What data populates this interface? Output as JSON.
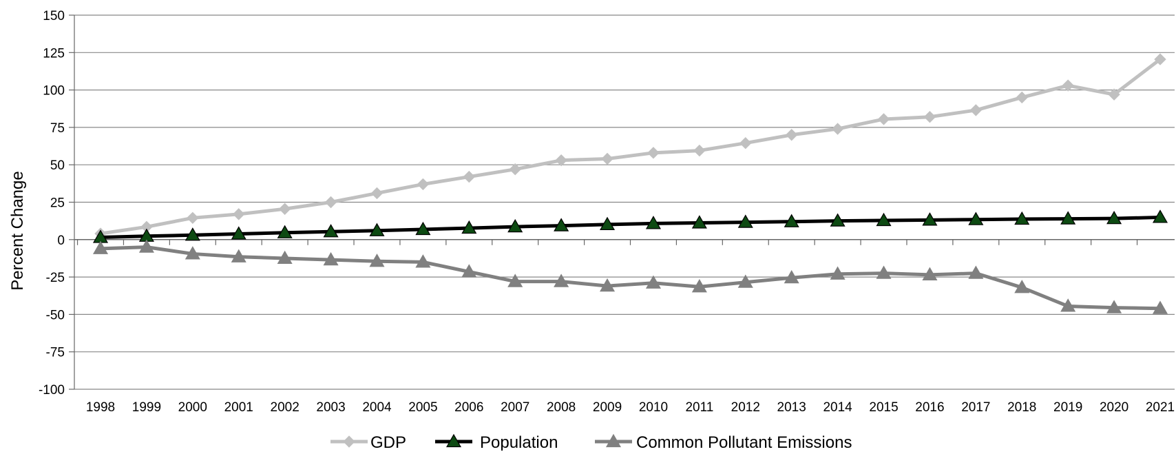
{
  "chart_data": {
    "type": "line",
    "title": "",
    "xlabel": "",
    "ylabel": "Percent Change",
    "ylim": [
      -100,
      150
    ],
    "yticks": [
      -100,
      -75,
      -50,
      -25,
      0,
      25,
      50,
      75,
      100,
      125,
      150
    ],
    "grid": true,
    "legend_position": "bottom-center",
    "categories": [
      "1998",
      "1999",
      "2000",
      "2001",
      "2002",
      "2003",
      "2004",
      "2005",
      "2006",
      "2007",
      "2008",
      "2009",
      "2010",
      "2011",
      "2012",
      "2013",
      "2014",
      "2015",
      "2016",
      "2017",
      "2018",
      "2019",
      "2020",
      "2021"
    ],
    "series": [
      {
        "name": "GDP",
        "marker": "diamond",
        "color": "#c0c0c0",
        "values": [
          4,
          8.5,
          14.5,
          17,
          20.5,
          25,
          31,
          37,
          42,
          47,
          53,
          54,
          58,
          59.5,
          64.5,
          70,
          74,
          80.5,
          82,
          86.5,
          95,
          103,
          97,
          120.5
        ]
      },
      {
        "name": "Population",
        "marker": "triangle",
        "color": "#000000",
        "marker_fill": "#0d4a12",
        "values": [
          1.5,
          2.3,
          3,
          3.8,
          4.6,
          5.3,
          6,
          6.8,
          7.7,
          8.6,
          9.3,
          10.1,
          10.8,
          11.2,
          11.6,
          12,
          12.5,
          12.8,
          13.1,
          13.4,
          13.7,
          13.9,
          14.1,
          14.9
        ]
      },
      {
        "name": "Common Pollutant Emissions",
        "marker": "triangle",
        "color": "#808080",
        "values": [
          -6,
          -5,
          -9.5,
          -11.5,
          -12.5,
          -13.5,
          -14.5,
          -15,
          -21.5,
          -28,
          -28,
          -31,
          -29,
          -31.5,
          -28.5,
          -25.5,
          -23,
          -22.5,
          -23.5,
          -22.5,
          -32,
          -44.5,
          -45.5,
          -46
        ]
      }
    ]
  }
}
